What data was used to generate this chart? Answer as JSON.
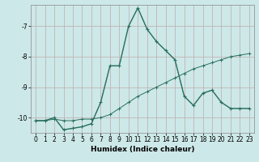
{
  "xlabel": "Humidex (Indice chaleur)",
  "bg_color": "#cde8e8",
  "grid_color": "#c0aaaa",
  "line_color": "#2a7060",
  "xlim": [
    -0.5,
    23.5
  ],
  "ylim": [
    -10.5,
    -6.3
  ],
  "yticks": [
    -10,
    -9,
    -8,
    -7
  ],
  "xticks": [
    0,
    1,
    2,
    3,
    4,
    5,
    6,
    7,
    8,
    9,
    10,
    11,
    12,
    13,
    14,
    15,
    16,
    17,
    18,
    19,
    20,
    21,
    22,
    23
  ],
  "series_main_x": [
    0,
    1,
    2,
    3,
    4,
    5,
    6,
    7,
    8,
    9,
    10,
    11,
    12,
    13,
    14,
    15,
    16,
    17,
    18,
    19,
    20,
    21,
    22,
    23
  ],
  "series_main_y": [
    -10.1,
    -10.1,
    -10.0,
    -10.4,
    -10.35,
    -10.3,
    -10.2,
    -9.5,
    -8.3,
    -8.3,
    -7.0,
    -6.4,
    -7.1,
    -7.5,
    -7.8,
    -8.1,
    -9.3,
    -9.6,
    -9.2,
    -9.1,
    -9.5,
    -9.7,
    -9.7,
    -9.7
  ],
  "series_flat_x": [
    0,
    1,
    2,
    3,
    4,
    5,
    6,
    7,
    8,
    9,
    10,
    11,
    12,
    13,
    14,
    15,
    16,
    17,
    18,
    19,
    20,
    21,
    22,
    23
  ],
  "series_flat_y": [
    -10.1,
    -10.1,
    -10.05,
    -10.1,
    -10.1,
    -10.05,
    -10.05,
    -10.0,
    -9.9,
    -9.7,
    -9.5,
    -9.3,
    -9.15,
    -9.0,
    -8.85,
    -8.7,
    -8.55,
    -8.4,
    -8.3,
    -8.2,
    -8.1,
    -8.0,
    -7.95,
    -7.9
  ],
  "series_dot_x": [
    0,
    1,
    2,
    3,
    4,
    5,
    6,
    7,
    8,
    9,
    10,
    11,
    12,
    13,
    14,
    15,
    16,
    17,
    18,
    19,
    20,
    21,
    22,
    23
  ],
  "series_dot_y": [
    -10.1,
    -10.1,
    -10.0,
    -10.4,
    -10.35,
    -10.3,
    -10.2,
    -9.5,
    -8.3,
    -8.3,
    -7.0,
    -6.4,
    -7.1,
    -7.5,
    -7.8,
    -8.1,
    -9.3,
    -9.6,
    -9.2,
    -9.1,
    -9.5,
    -9.7,
    -9.7,
    -9.7
  ]
}
